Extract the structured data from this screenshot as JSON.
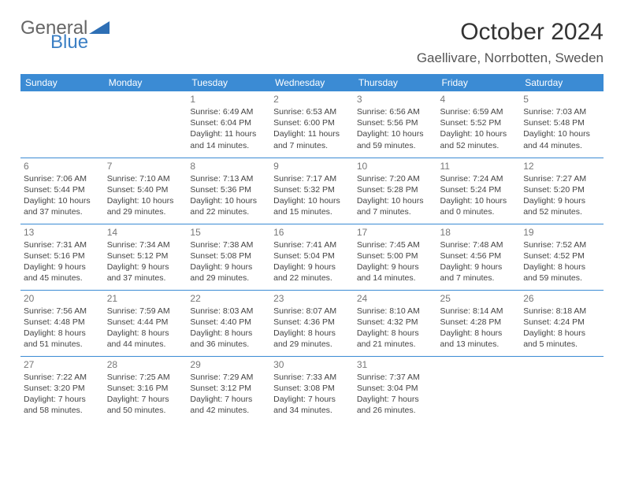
{
  "logo": {
    "word1": "General",
    "word2": "Blue",
    "color_gray": "#666666",
    "color_blue": "#3b7fc4"
  },
  "header": {
    "title": "October 2024",
    "location": "Gaellivare, Norrbotten, Sweden"
  },
  "colors": {
    "header_bg": "#3b8bd4",
    "header_text": "#ffffff",
    "border": "#3b8bd4",
    "text": "#444444",
    "daynum": "#777777"
  },
  "weekday_labels": [
    "Sunday",
    "Monday",
    "Tuesday",
    "Wednesday",
    "Thursday",
    "Friday",
    "Saturday"
  ],
  "weeks": [
    [
      null,
      null,
      {
        "n": "1",
        "sr": "Sunrise: 6:49 AM",
        "ss": "Sunset: 6:04 PM",
        "dl1": "Daylight: 11 hours",
        "dl2": "and 14 minutes."
      },
      {
        "n": "2",
        "sr": "Sunrise: 6:53 AM",
        "ss": "Sunset: 6:00 PM",
        "dl1": "Daylight: 11 hours",
        "dl2": "and 7 minutes."
      },
      {
        "n": "3",
        "sr": "Sunrise: 6:56 AM",
        "ss": "Sunset: 5:56 PM",
        "dl1": "Daylight: 10 hours",
        "dl2": "and 59 minutes."
      },
      {
        "n": "4",
        "sr": "Sunrise: 6:59 AM",
        "ss": "Sunset: 5:52 PM",
        "dl1": "Daylight: 10 hours",
        "dl2": "and 52 minutes."
      },
      {
        "n": "5",
        "sr": "Sunrise: 7:03 AM",
        "ss": "Sunset: 5:48 PM",
        "dl1": "Daylight: 10 hours",
        "dl2": "and 44 minutes."
      }
    ],
    [
      {
        "n": "6",
        "sr": "Sunrise: 7:06 AM",
        "ss": "Sunset: 5:44 PM",
        "dl1": "Daylight: 10 hours",
        "dl2": "and 37 minutes."
      },
      {
        "n": "7",
        "sr": "Sunrise: 7:10 AM",
        "ss": "Sunset: 5:40 PM",
        "dl1": "Daylight: 10 hours",
        "dl2": "and 29 minutes."
      },
      {
        "n": "8",
        "sr": "Sunrise: 7:13 AM",
        "ss": "Sunset: 5:36 PM",
        "dl1": "Daylight: 10 hours",
        "dl2": "and 22 minutes."
      },
      {
        "n": "9",
        "sr": "Sunrise: 7:17 AM",
        "ss": "Sunset: 5:32 PM",
        "dl1": "Daylight: 10 hours",
        "dl2": "and 15 minutes."
      },
      {
        "n": "10",
        "sr": "Sunrise: 7:20 AM",
        "ss": "Sunset: 5:28 PM",
        "dl1": "Daylight: 10 hours",
        "dl2": "and 7 minutes."
      },
      {
        "n": "11",
        "sr": "Sunrise: 7:24 AM",
        "ss": "Sunset: 5:24 PM",
        "dl1": "Daylight: 10 hours",
        "dl2": "and 0 minutes."
      },
      {
        "n": "12",
        "sr": "Sunrise: 7:27 AM",
        "ss": "Sunset: 5:20 PM",
        "dl1": "Daylight: 9 hours",
        "dl2": "and 52 minutes."
      }
    ],
    [
      {
        "n": "13",
        "sr": "Sunrise: 7:31 AM",
        "ss": "Sunset: 5:16 PM",
        "dl1": "Daylight: 9 hours",
        "dl2": "and 45 minutes."
      },
      {
        "n": "14",
        "sr": "Sunrise: 7:34 AM",
        "ss": "Sunset: 5:12 PM",
        "dl1": "Daylight: 9 hours",
        "dl2": "and 37 minutes."
      },
      {
        "n": "15",
        "sr": "Sunrise: 7:38 AM",
        "ss": "Sunset: 5:08 PM",
        "dl1": "Daylight: 9 hours",
        "dl2": "and 29 minutes."
      },
      {
        "n": "16",
        "sr": "Sunrise: 7:41 AM",
        "ss": "Sunset: 5:04 PM",
        "dl1": "Daylight: 9 hours",
        "dl2": "and 22 minutes."
      },
      {
        "n": "17",
        "sr": "Sunrise: 7:45 AM",
        "ss": "Sunset: 5:00 PM",
        "dl1": "Daylight: 9 hours",
        "dl2": "and 14 minutes."
      },
      {
        "n": "18",
        "sr": "Sunrise: 7:48 AM",
        "ss": "Sunset: 4:56 PM",
        "dl1": "Daylight: 9 hours",
        "dl2": "and 7 minutes."
      },
      {
        "n": "19",
        "sr": "Sunrise: 7:52 AM",
        "ss": "Sunset: 4:52 PM",
        "dl1": "Daylight: 8 hours",
        "dl2": "and 59 minutes."
      }
    ],
    [
      {
        "n": "20",
        "sr": "Sunrise: 7:56 AM",
        "ss": "Sunset: 4:48 PM",
        "dl1": "Daylight: 8 hours",
        "dl2": "and 51 minutes."
      },
      {
        "n": "21",
        "sr": "Sunrise: 7:59 AM",
        "ss": "Sunset: 4:44 PM",
        "dl1": "Daylight: 8 hours",
        "dl2": "and 44 minutes."
      },
      {
        "n": "22",
        "sr": "Sunrise: 8:03 AM",
        "ss": "Sunset: 4:40 PM",
        "dl1": "Daylight: 8 hours",
        "dl2": "and 36 minutes."
      },
      {
        "n": "23",
        "sr": "Sunrise: 8:07 AM",
        "ss": "Sunset: 4:36 PM",
        "dl1": "Daylight: 8 hours",
        "dl2": "and 29 minutes."
      },
      {
        "n": "24",
        "sr": "Sunrise: 8:10 AM",
        "ss": "Sunset: 4:32 PM",
        "dl1": "Daylight: 8 hours",
        "dl2": "and 21 minutes."
      },
      {
        "n": "25",
        "sr": "Sunrise: 8:14 AM",
        "ss": "Sunset: 4:28 PM",
        "dl1": "Daylight: 8 hours",
        "dl2": "and 13 minutes."
      },
      {
        "n": "26",
        "sr": "Sunrise: 8:18 AM",
        "ss": "Sunset: 4:24 PM",
        "dl1": "Daylight: 8 hours",
        "dl2": "and 5 minutes."
      }
    ],
    [
      {
        "n": "27",
        "sr": "Sunrise: 7:22 AM",
        "ss": "Sunset: 3:20 PM",
        "dl1": "Daylight: 7 hours",
        "dl2": "and 58 minutes."
      },
      {
        "n": "28",
        "sr": "Sunrise: 7:25 AM",
        "ss": "Sunset: 3:16 PM",
        "dl1": "Daylight: 7 hours",
        "dl2": "and 50 minutes."
      },
      {
        "n": "29",
        "sr": "Sunrise: 7:29 AM",
        "ss": "Sunset: 3:12 PM",
        "dl1": "Daylight: 7 hours",
        "dl2": "and 42 minutes."
      },
      {
        "n": "30",
        "sr": "Sunrise: 7:33 AM",
        "ss": "Sunset: 3:08 PM",
        "dl1": "Daylight: 7 hours",
        "dl2": "and 34 minutes."
      },
      {
        "n": "31",
        "sr": "Sunrise: 7:37 AM",
        "ss": "Sunset: 3:04 PM",
        "dl1": "Daylight: 7 hours",
        "dl2": "and 26 minutes."
      },
      null,
      null
    ]
  ]
}
